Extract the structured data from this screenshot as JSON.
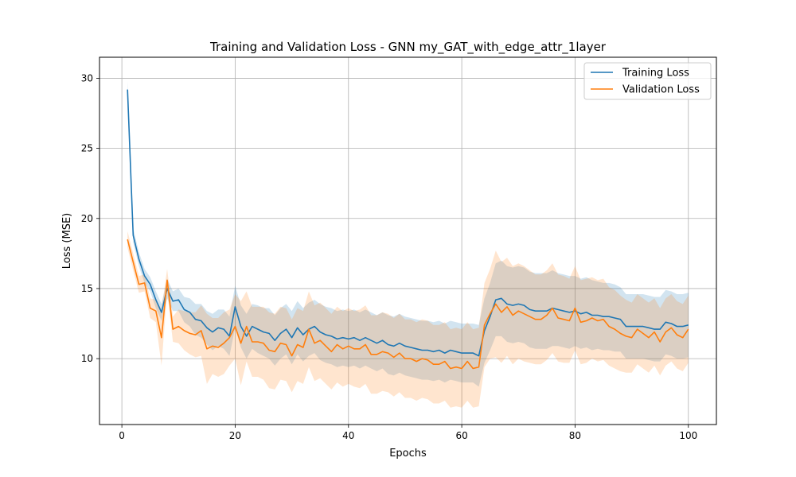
{
  "chart_data": {
    "type": "line",
    "title": "Training and Validation Loss - GNN my_GAT_with_edge_attr_1layer",
    "xlabel": "Epochs",
    "ylabel": "Loss (MSE)",
    "xlim": [
      -3.95,
      104.95
    ],
    "ylim": [
      5.3,
      31.5
    ],
    "xticks": [
      0,
      20,
      40,
      60,
      80,
      100
    ],
    "yticks": [
      10,
      15,
      20,
      25,
      30
    ],
    "grid": true,
    "legend_position": "top-right",
    "x_start": 1,
    "series": [
      {
        "name": "Training Loss",
        "color": "#1f77b4",
        "values": [
          29.2,
          18.8,
          17.1,
          15.9,
          15.3,
          14.2,
          13.3,
          15.0,
          14.1,
          14.2,
          13.5,
          13.3,
          12.8,
          12.7,
          12.2,
          11.9,
          12.2,
          12.1,
          11.6,
          13.7,
          12.3,
          11.6,
          12.3,
          12.1,
          11.9,
          11.8,
          11.3,
          11.8,
          12.1,
          11.5,
          12.2,
          11.7,
          12.1,
          12.3,
          11.9,
          11.7,
          11.6,
          11.4,
          11.5,
          11.4,
          11.5,
          11.3,
          11.5,
          11.3,
          11.1,
          11.3,
          11.0,
          10.9,
          11.1,
          10.9,
          10.8,
          10.7,
          10.6,
          10.6,
          10.5,
          10.6,
          10.4,
          10.6,
          10.5,
          10.4,
          10.4,
          10.4,
          10.2,
          12.0,
          13.0,
          14.2,
          14.3,
          13.9,
          13.8,
          13.9,
          13.8,
          13.5,
          13.4,
          13.4,
          13.4,
          13.6,
          13.5,
          13.4,
          13.3,
          13.4,
          13.2,
          13.3,
          13.1,
          13.1,
          13.0,
          13.0,
          12.9,
          12.8,
          12.3,
          12.3,
          12.3,
          12.3,
          12.2,
          12.1,
          12.1,
          12.6,
          12.5,
          12.3,
          12.3,
          12.4
        ],
        "band_width": [
          0.6,
          0.5,
          0.5,
          0.5,
          0.5,
          0.6,
          0.6,
          0.7,
          0.7,
          0.8,
          0.9,
          1.0,
          1.1,
          1.2,
          1.2,
          1.3,
          1.3,
          1.4,
          1.4,
          1.5,
          1.5,
          1.6,
          1.6,
          1.7,
          1.7,
          1.8,
          1.8,
          1.8,
          1.8,
          1.9,
          1.9,
          1.9,
          1.9,
          1.9,
          2.0,
          2.0,
          2.0,
          2.0,
          2.0,
          2.0,
          2.0,
          2.0,
          2.0,
          2.0,
          2.0,
          2.0,
          2.1,
          2.1,
          2.1,
          2.1,
          2.1,
          2.1,
          2.1,
          2.1,
          2.1,
          2.1,
          2.1,
          2.1,
          2.1,
          2.1,
          2.1,
          2.1,
          2.2,
          2.3,
          2.4,
          2.6,
          2.7,
          2.7,
          2.7,
          2.7,
          2.7,
          2.7,
          2.7,
          2.7,
          2.7,
          2.7,
          2.6,
          2.6,
          2.6,
          2.5,
          2.5,
          2.5,
          2.5,
          2.4,
          2.4,
          2.4,
          2.4,
          2.3,
          2.3,
          2.3,
          2.3,
          2.3,
          2.3,
          2.3,
          2.3,
          2.3,
          2.3,
          2.3,
          2.3,
          2.3
        ]
      },
      {
        "name": "Validation Loss",
        "color": "#ff7f0e",
        "values": [
          18.5,
          16.9,
          15.3,
          15.4,
          13.6,
          13.4,
          11.5,
          15.6,
          12.1,
          12.3,
          12.0,
          11.8,
          11.7,
          12.0,
          10.7,
          10.9,
          10.8,
          11.1,
          11.5,
          12.3,
          11.1,
          12.3,
          11.2,
          11.2,
          11.1,
          10.6,
          10.5,
          11.1,
          11.0,
          10.2,
          11.0,
          10.8,
          12.1,
          11.1,
          11.3,
          10.9,
          10.5,
          11.0,
          10.7,
          10.9,
          10.7,
          10.7,
          11.0,
          10.3,
          10.3,
          10.5,
          10.4,
          10.1,
          10.4,
          10.0,
          10.0,
          9.8,
          10.0,
          9.9,
          9.6,
          9.6,
          9.8,
          9.3,
          9.4,
          9.3,
          9.8,
          9.3,
          9.4,
          12.4,
          13.2,
          13.9,
          13.3,
          13.7,
          13.1,
          13.4,
          13.2,
          13.0,
          12.8,
          12.8,
          13.1,
          13.6,
          12.9,
          12.8,
          12.7,
          13.6,
          12.6,
          12.7,
          12.9,
          12.7,
          12.8,
          12.3,
          12.1,
          11.8,
          11.6,
          11.5,
          12.1,
          11.8,
          11.5,
          11.9,
          11.2,
          11.9,
          12.2,
          11.7,
          11.5,
          12.1
        ],
        "band_width": [
          0.6,
          0.6,
          0.6,
          0.6,
          0.7,
          0.8,
          2.0,
          0.8,
          0.9,
          1.2,
          1.4,
          1.5,
          1.6,
          1.8,
          2.5,
          2.0,
          2.1,
          2.2,
          2.0,
          2.3,
          3.0,
          2.5,
          2.5,
          2.5,
          2.6,
          2.7,
          2.7,
          2.6,
          2.6,
          2.6,
          2.6,
          2.6,
          2.7,
          2.7,
          2.7,
          2.7,
          2.7,
          2.7,
          2.7,
          2.7,
          2.7,
          2.8,
          2.8,
          2.8,
          2.8,
          2.8,
          2.8,
          2.8,
          2.8,
          2.8,
          2.8,
          2.8,
          2.8,
          2.8,
          2.8,
          2.8,
          2.8,
          2.8,
          2.8,
          2.8,
          2.8,
          2.8,
          2.8,
          3.0,
          3.2,
          3.8,
          3.6,
          3.5,
          3.5,
          3.4,
          3.4,
          3.3,
          3.2,
          3.2,
          3.2,
          3.2,
          3.1,
          3.1,
          3.0,
          3.0,
          3.0,
          3.0,
          2.9,
          2.9,
          2.9,
          2.8,
          2.8,
          2.7,
          2.6,
          2.5,
          2.5,
          2.5,
          2.5,
          2.4,
          2.4,
          2.4,
          2.4,
          2.4,
          2.4,
          2.4
        ]
      }
    ]
  }
}
